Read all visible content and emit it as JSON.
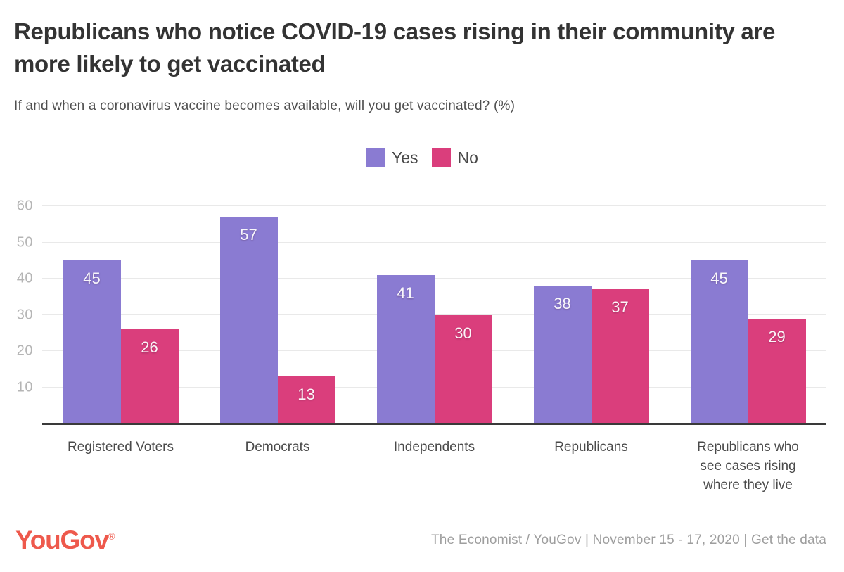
{
  "header": {
    "title": "Republicans who notice COVID-19 cases rising in their community are more likely to get vaccinated",
    "subtitle": "If and when a coronavirus vaccine becomes available, will you get vaccinated? (%)"
  },
  "chart_data": {
    "type": "bar",
    "title": "Republicans who notice COVID-19 cases rising in their community are more likely to get vaccinated",
    "subtitle": "If and when a coronavirus vaccine becomes available, will you get vaccinated? (%)",
    "categories": [
      "Registered Voters",
      "Democrats",
      "Independents",
      "Republicans",
      "Republicans who see cases rising where they live"
    ],
    "series": [
      {
        "name": "Yes",
        "color": "#8a7bd2",
        "values": [
          45,
          57,
          41,
          38,
          45
        ]
      },
      {
        "name": "No",
        "color": "#da3e7c",
        "values": [
          26,
          13,
          30,
          37,
          29
        ]
      }
    ],
    "xlabel": "",
    "ylabel": "",
    "ylim": [
      0,
      60
    ],
    "yticks": [
      10,
      20,
      30,
      40,
      50,
      60
    ],
    "grid": true,
    "legend_position": "top-center",
    "value_labels": "inside-top"
  },
  "legend": [
    {
      "label": "Yes",
      "color": "#8a7bd2"
    },
    {
      "label": "No",
      "color": "#da3e7c"
    }
  ],
  "footer": {
    "logo": "YouGov",
    "registered": "®",
    "logo_color": "#ee594c",
    "source_prefix": "The Economist / YouGov | November 15 - 17, 2020 | ",
    "get_data_label": "Get the data"
  },
  "colors": {
    "title": "#333333",
    "subtitle": "#4f4f4f",
    "ytick_label": "#b5b5b5",
    "category_label": "#4a4a4a",
    "gridline": "#e9e9e9",
    "baseline": "#3a3a3a",
    "bar_value_text": "#ffffff"
  }
}
